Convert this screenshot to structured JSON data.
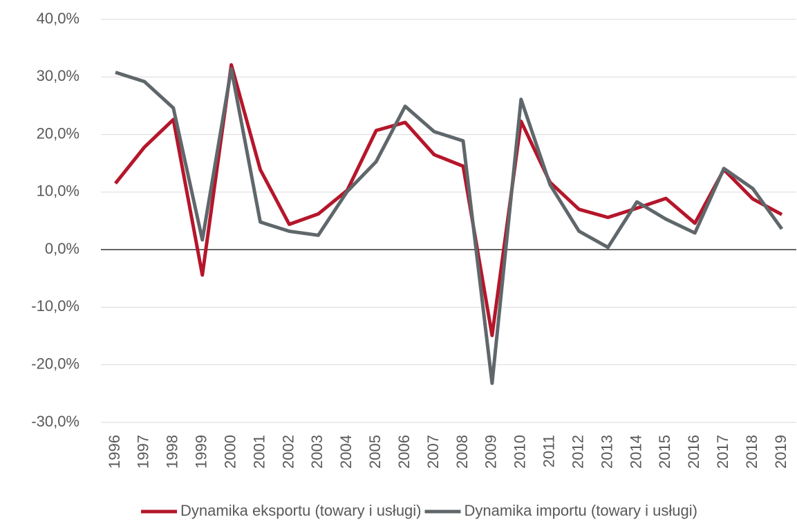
{
  "chart_data": {
    "type": "line",
    "categories": [
      "1996",
      "1997",
      "1998",
      "1999",
      "2000",
      "2001",
      "2002",
      "2003",
      "2004",
      "2005",
      "2006",
      "2007",
      "2008",
      "2009",
      "2010",
      "2011",
      "2012",
      "2013",
      "2014",
      "2015",
      "2016",
      "2017",
      "2018",
      "2019"
    ],
    "series": [
      {
        "name": "Dynamika eksportu (towary i usługi)",
        "color": "#b5162b",
        "values": [
          11.5,
          17.8,
          22.6,
          -4.4,
          32.1,
          13.9,
          4.4,
          6.2,
          10.3,
          20.7,
          22.1,
          16.5,
          14.5,
          -14.9,
          22.3,
          11.7,
          7.0,
          5.6,
          7.2,
          8.9,
          4.6,
          13.9,
          8.8,
          6.1
        ]
      },
      {
        "name": "Dynamika importu (towary i usługi)",
        "color": "#60676b",
        "values": [
          30.8,
          29.2,
          24.6,
          1.7,
          31.4,
          4.8,
          3.2,
          2.5,
          10.1,
          15.3,
          24.9,
          20.5,
          18.9,
          -23.2,
          26.1,
          11.3,
          3.2,
          0.4,
          8.3,
          5.3,
          2.9,
          14.1,
          10.6,
          3.6
        ]
      }
    ],
    "ylim": [
      -30,
      40
    ],
    "yticks": [
      {
        "value": -30,
        "label": "-30,0%"
      },
      {
        "value": -20,
        "label": "-20,0%"
      },
      {
        "value": -10,
        "label": "-10,0%"
      },
      {
        "value": 0,
        "label": "0,0%"
      },
      {
        "value": 10,
        "label": "10,0%"
      },
      {
        "value": 20,
        "label": "20,0%"
      },
      {
        "value": 30,
        "label": "30,0%"
      },
      {
        "value": 40,
        "label": "40,0%"
      }
    ],
    "grid": true,
    "legend": "bottom"
  }
}
